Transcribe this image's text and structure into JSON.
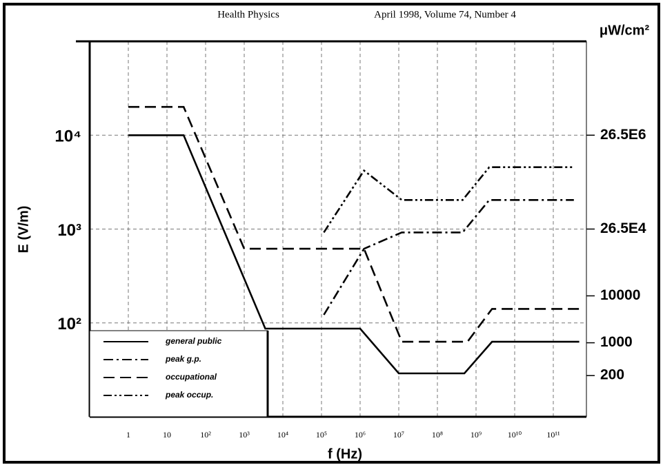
{
  "chart_data": {
    "type": "line",
    "header_left": "Health Physics",
    "header_right": "April 1998, Volume 74, Number 4",
    "x_label": "f (Hz)",
    "y_label": "E (V/m)",
    "y2_label": "μW/cm²",
    "xscale": "log",
    "yscale": "log",
    "y2scale": "log",
    "grid": true,
    "legend": "lower left",
    "xlim": [
      0.1,
      1000000000000
    ],
    "xticks": [
      1,
      10,
      {
        "value": 100,
        "label": "10²"
      },
      {
        "value": 1000,
        "label": "10³"
      },
      {
        "value": 10000,
        "label": "10⁴"
      },
      {
        "value": 100000,
        "label": "10⁵"
      },
      {
        "value": 1000000,
        "label": "10⁶"
      },
      {
        "value": 10000000,
        "label": "10⁷"
      },
      {
        "value": 100000000,
        "label": "10⁸"
      },
      {
        "value": 1000000000,
        "label": "10⁹"
      },
      {
        "value": 10000000000,
        "label": "10¹⁰"
      },
      {
        "value": 100000000000,
        "label": "10¹¹"
      }
    ],
    "ylim": [
      10,
      100000
    ],
    "yticks": [
      {
        "value": 100,
        "label": "10²"
      },
      {
        "value": 1000,
        "label": "10³"
      },
      {
        "value": 10000,
        "label": "10⁴"
      }
    ],
    "y2lim": [
      26.5,
      2650000000
    ],
    "y2ticks": [
      {
        "value": 26500000,
        "label": "26.5E6"
      },
      {
        "value": 265000,
        "label": "26.5E4"
      },
      10000,
      1000,
      200
    ],
    "series": [
      {
        "name": "general public",
        "color": "#000000",
        "dash": "solid",
        "x": [
          1,
          27,
          3500,
          1000000,
          10000000,
          500000000,
          2600000000,
          470000000000
        ],
        "values": [
          10000,
          10000,
          87,
          87,
          29,
          29,
          63,
          63
        ]
      },
      {
        "name": "peak g.p.",
        "color": "#000000",
        "dash": "dashdot",
        "x": [
          115000,
          1260000,
          12000000,
          450000000,
          2200000000,
          340000000000
        ],
        "values": [
          122,
          617,
          920,
          920,
          2040,
          2040
        ]
      },
      {
        "name": "occupational",
        "color": "#000000",
        "dash": "dashed",
        "x": [
          1,
          27,
          1000,
          1260000,
          12000000,
          600000000,
          2600000000,
          470000000000
        ],
        "values": [
          20000,
          20000,
          617,
          617,
          63,
          63,
          141,
          141
        ]
      },
      {
        "name": "peak occup.",
        "color": "#000000",
        "dash": "dashdotdot",
        "x": [
          115000,
          1260000,
          12000000,
          450000000,
          2200000000,
          340000000000
        ],
        "values": [
          920,
          4200,
          2040,
          2040,
          4560,
          4560
        ]
      }
    ]
  }
}
